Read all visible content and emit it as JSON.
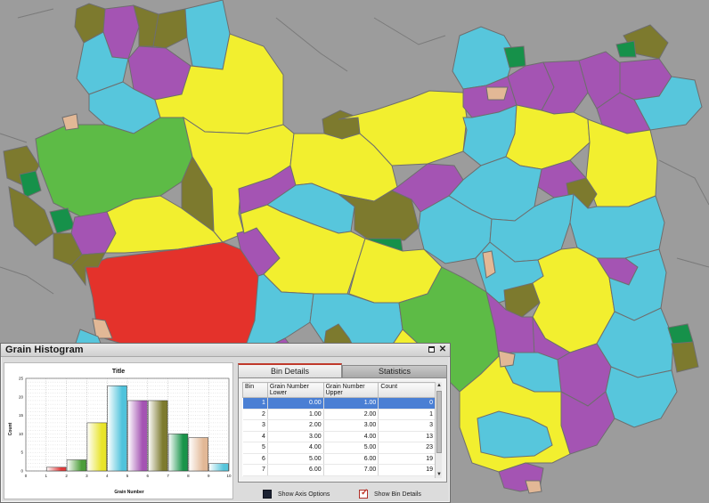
{
  "colors": {
    "background": "#9c9c9c",
    "boundary": "#6e6e6e",
    "yellow": "#f2ef2f",
    "cyan": "#57c6dc",
    "magenta": "#a454b3",
    "olive": "#7d7a2e",
    "green": "#5dbb46",
    "dark_green": "#16914a",
    "red": "#e4322b",
    "tan": "#e2b896"
  },
  "window": {
    "title": "Grain Histogram",
    "restore_icon": "restore-icon",
    "close_icon": "close-icon",
    "close_glyph": "✕"
  },
  "tabs": {
    "bin_details": "Bin Details",
    "statistics": "Statistics"
  },
  "table": {
    "headers": {
      "bin": "Bin",
      "lower": "Grain Number Lower",
      "upper": "Grain Number Upper",
      "count": "Count"
    },
    "rows": [
      {
        "bin": "1",
        "lower": "0.00",
        "upper": "1.00",
        "count": "0"
      },
      {
        "bin": "2",
        "lower": "1.00",
        "upper": "2.00",
        "count": "1"
      },
      {
        "bin": "3",
        "lower": "2.00",
        "upper": "3.00",
        "count": "3"
      },
      {
        "bin": "4",
        "lower": "3.00",
        "upper": "4.00",
        "count": "13"
      },
      {
        "bin": "5",
        "lower": "4.00",
        "upper": "5.00",
        "count": "23"
      },
      {
        "bin": "6",
        "lower": "5.00",
        "upper": "6.00",
        "count": "19"
      },
      {
        "bin": "7",
        "lower": "6.00",
        "upper": "7.00",
        "count": "19"
      }
    ],
    "selected_row": 0
  },
  "options": {
    "axis": "Show Axis Options",
    "bin_details": "Show Bin Details",
    "bin_details_checked": true
  },
  "chart_data": {
    "type": "bar",
    "title": "Title",
    "xlabel": "Grain Number",
    "ylabel": "Count",
    "xlim": [
      0,
      10
    ],
    "ylim": [
      0,
      25
    ],
    "xticks": [
      "0",
      "1",
      "2",
      "3",
      "4",
      "5",
      "6",
      "7",
      "8",
      "9",
      "10"
    ],
    "yticks": [
      "0",
      "5",
      "10",
      "15",
      "20",
      "25"
    ],
    "grid": true,
    "categories": [
      "0-1",
      "1-2",
      "2-3",
      "3-4",
      "4-5",
      "5-6",
      "6-7",
      "7-8",
      "8-9",
      "9-10"
    ],
    "values": [
      0,
      1,
      3,
      13,
      23,
      19,
      19,
      10,
      9,
      2
    ],
    "bar_colors": [
      "#aaaaaa",
      "#e23b3b",
      "#4d9e3a",
      "#e8e42a",
      "#4fc3dc",
      "#a454b3",
      "#7d7a2e",
      "#19944a",
      "#e2b896",
      "#57c6dc"
    ]
  }
}
